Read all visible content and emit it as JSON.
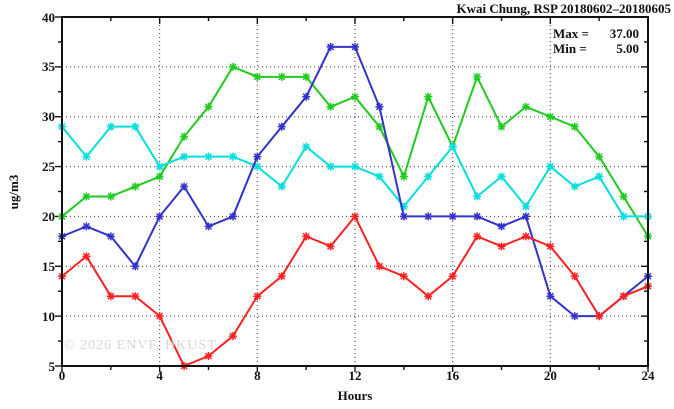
{
  "title": "Kwai Chung, RSP 20180602–20180605",
  "annotation": {
    "max_label": "Max =",
    "max_value": "37.00",
    "min_label": "Min =",
    "min_value": "5.00"
  },
  "axes": {
    "ylabel": "ug/m3",
    "xlabel": "Hours"
  },
  "watermark": "© 2026 ENVF, HKUST",
  "chart_data": {
    "type": "line",
    "title": "Kwai Chung, RSP 20180602–20180605",
    "xlabel": "Hours",
    "ylabel": "ug/m3",
    "xlim": [
      0,
      24
    ],
    "ylim": [
      5,
      40
    ],
    "x_major_ticks": [
      0,
      4,
      8,
      12,
      16,
      20,
      24
    ],
    "x_minor_interval": 2,
    "y_major_ticks": [
      5,
      10,
      15,
      20,
      25,
      30,
      35,
      40
    ],
    "y_minor_interval": 2.5,
    "grid": "dotted-at-major-ticks",
    "legend_position": "none",
    "marker": "star",
    "annotations": {
      "max": 37.0,
      "min": 5.0
    },
    "x": [
      0,
      1,
      2,
      3,
      4,
      5,
      6,
      7,
      8,
      9,
      10,
      11,
      12,
      13,
      14,
      15,
      16,
      17,
      18,
      19,
      20,
      21,
      22,
      23,
      24
    ],
    "series": [
      {
        "name": "series-green",
        "color": "#1ecc1e",
        "values": [
          20,
          22,
          22,
          23,
          24,
          28,
          31,
          35,
          34,
          34,
          34,
          31,
          32,
          29,
          24,
          32,
          27,
          34,
          29,
          31,
          30,
          29,
          26,
          22,
          18
        ]
      },
      {
        "name": "series-cyan",
        "color": "#00dede",
        "values": [
          29,
          26,
          29,
          29,
          25,
          26,
          26,
          26,
          25,
          23,
          27,
          25,
          25,
          24,
          21,
          24,
          27,
          22,
          24,
          21,
          25,
          23,
          24,
          20,
          20
        ]
      },
      {
        "name": "series-blue",
        "color": "#3333cc",
        "values": [
          18,
          19,
          18,
          15,
          20,
          23,
          19,
          20,
          26,
          29,
          32,
          37,
          37,
          31,
          20,
          20,
          20,
          20,
          19,
          20,
          12,
          10,
          10,
          12,
          14
        ]
      },
      {
        "name": "series-red",
        "color": "#ff2020",
        "values": [
          14,
          16,
          12,
          12,
          10,
          5,
          6,
          8,
          12,
          14,
          18,
          17,
          20,
          15,
          14,
          12,
          14,
          18,
          17,
          18,
          17,
          14,
          10,
          12,
          13
        ]
      }
    ]
  }
}
